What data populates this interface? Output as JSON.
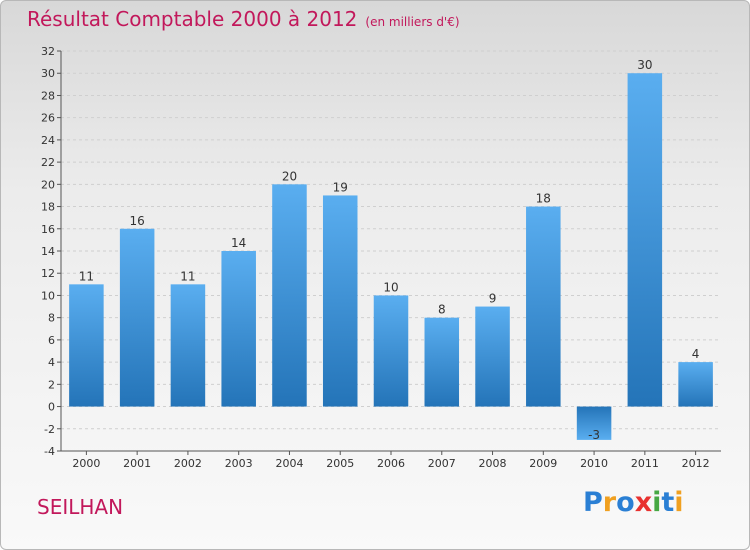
{
  "title": "Résultat Comptable 2000 à 2012",
  "subtitle": "(en milliers d'€)",
  "location": "SEILHAN",
  "brand": {
    "name": "Proxiti",
    "letters": [
      {
        "ch": "P",
        "color": "#2a7fd4"
      },
      {
        "ch": "r",
        "color": "#f0a020"
      },
      {
        "ch": "o",
        "color": "#2a7fd4"
      },
      {
        "ch": "x",
        "color": "#e8312f"
      },
      {
        "ch": "i",
        "color": "#46a843"
      },
      {
        "ch": "t",
        "color": "#2a7fd4"
      },
      {
        "ch": "i",
        "color": "#f0a020"
      }
    ]
  },
  "colors": {
    "bar_top": "#5aaef0",
    "bar_bottom": "#2474b8",
    "title": "#c2185b",
    "grid": "#cfcfcf"
  },
  "chart_data": {
    "type": "bar",
    "title": "Résultat Comptable 2000 à 2012",
    "subtitle": "(en milliers d'€)",
    "categories": [
      "2000",
      "2001",
      "2002",
      "2003",
      "2004",
      "2005",
      "2006",
      "2007",
      "2008",
      "2009",
      "2010",
      "2011",
      "2012"
    ],
    "values": [
      11,
      16,
      11,
      14,
      20,
      19,
      10,
      8,
      9,
      18,
      -3,
      30,
      4
    ],
    "data_labels": [
      "11",
      "16",
      "11",
      "14",
      "20",
      "19",
      "10",
      "8",
      "9",
      "18",
      "-3",
      "30",
      "4"
    ],
    "ylim": [
      -4,
      32
    ],
    "yticks": [
      -4,
      -2,
      0,
      2,
      4,
      6,
      8,
      10,
      12,
      14,
      16,
      18,
      20,
      22,
      24,
      26,
      28,
      30,
      32
    ],
    "ytick_labels": [
      "-4",
      "-2",
      "0",
      "2",
      "4",
      "6",
      "8",
      "10",
      "12",
      "14",
      "16",
      "18",
      "20",
      "22",
      "24",
      "26",
      "28",
      "30",
      "32"
    ],
    "grid": true,
    "xlabel": "",
    "ylabel": ""
  }
}
